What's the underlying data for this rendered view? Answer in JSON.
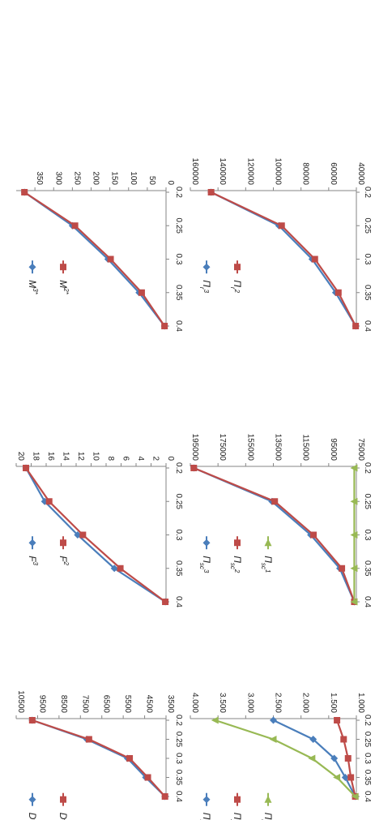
{
  "colors": {
    "blue": "#4a7ebb",
    "red": "#be4b48",
    "green": "#98b954",
    "axis": "#868686"
  },
  "chart_data": [
    {
      "type": "line",
      "x": [
        0.2,
        0.25,
        0.3,
        0.35,
        0.4
      ],
      "x_ticks": [
        "0.2",
        "0.25",
        "0.3",
        "0.35",
        "0.4"
      ],
      "xlim": [
        0.2,
        0.4
      ],
      "ylim": [
        0,
        400
      ],
      "y_ticks": [
        "0",
        "50",
        "100",
        "150",
        "200",
        "250",
        "300",
        "350"
      ],
      "y_tick_values": [
        0,
        50,
        100,
        150,
        200,
        250,
        300,
        350
      ],
      "series": [
        {
          "name": "M³*",
          "color": "blue",
          "marker": "diamond",
          "values": [
            378,
            250,
            155,
            72,
            4
          ]
        },
        {
          "name": "M²*",
          "color": "red",
          "marker": "square",
          "values": [
            378,
            243,
            148,
            65,
            4
          ]
        }
      ]
    },
    {
      "type": "line",
      "x": [
        0.2,
        0.25,
        0.3,
        0.35,
        0.4
      ],
      "x_ticks": [
        "0.2",
        "0.25",
        "0.3",
        "0.35",
        "0.4"
      ],
      "xlim": [
        0.2,
        0.4
      ],
      "ylim": [
        0,
        20
      ],
      "y_ticks": [
        "0",
        "2",
        "4",
        "6",
        "8",
        "10",
        "12",
        "14",
        "16",
        "18",
        "20"
      ],
      "y_tick_values": [
        0,
        2,
        4,
        6,
        8,
        10,
        12,
        14,
        16,
        18,
        20
      ],
      "series": [
        {
          "name": "F³",
          "color": "blue",
          "marker": "diamond",
          "values": [
            18.7,
            16.2,
            11.8,
            6.9,
            0.1
          ]
        },
        {
          "name": "F²",
          "color": "red",
          "marker": "square",
          "values": [
            18.7,
            15.6,
            11.1,
            6.1,
            0.1
          ]
        }
      ]
    },
    {
      "type": "line",
      "x": [
        0.2,
        0.25,
        0.3,
        0.35,
        0.4
      ],
      "x_ticks": [
        "0.2",
        "0.25",
        "0.3",
        "0.35",
        "0.4"
      ],
      "xlim": [
        0.2,
        0.4
      ],
      "ylim": [
        3500,
        10500
      ],
      "y_ticks": [
        "3500",
        "4500",
        "5500",
        "6500",
        "7500",
        "8500",
        "9500",
        "10500"
      ],
      "y_tick_values": [
        3500,
        4500,
        5500,
        6500,
        7500,
        8500,
        9500,
        10500
      ],
      "series": [
        {
          "name": "D³",
          "color": "blue",
          "marker": "diamond",
          "values": [
            9750,
            7200,
            5300,
            4450,
            3550
          ]
        },
        {
          "name": "D²",
          "color": "red",
          "marker": "square",
          "values": [
            9750,
            7100,
            5200,
            4350,
            3550
          ]
        }
      ]
    },
    {
      "type": "line",
      "x": [
        0.2,
        0.25,
        0.3,
        0.35,
        0.4
      ],
      "x_ticks": [
        "0.2",
        "0.25",
        "0.3",
        "0.35",
        "0.4"
      ],
      "xlim": [
        0.2,
        0.4
      ],
      "ylim": [
        40000,
        160000
      ],
      "y_ticks": [
        "40000",
        "60000",
        "80000",
        "100000",
        "120000",
        "140000",
        "160000"
      ],
      "y_tick_values": [
        40000,
        60000,
        80000,
        100000,
        120000,
        140000,
        160000
      ],
      "series": [
        {
          "name": "Π_r³",
          "color": "blue",
          "marker": "diamond",
          "values": [
            145000,
            96000,
            72000,
            55000,
            40500
          ]
        },
        {
          "name": "Π_r²",
          "color": "red",
          "marker": "square",
          "values": [
            145000,
            94000,
            70000,
            53000,
            40500
          ]
        }
      ]
    },
    {
      "type": "line",
      "x": [
        0.2,
        0.25,
        0.3,
        0.35,
        0.4
      ],
      "x_ticks": [
        "0.2",
        "0.25",
        "0.3",
        "0.35",
        "0.4"
      ],
      "xlim": [
        0.2,
        0.4
      ],
      "ylim": [
        75000,
        195000
      ],
      "y_ticks": [
        "75000",
        "95000",
        "115000",
        "135000",
        "155000",
        "175000",
        "195000"
      ],
      "y_tick_values": [
        75000,
        95000,
        115000,
        135000,
        155000,
        175000,
        195000
      ],
      "series": [
        {
          "name": "Π_sc³",
          "color": "blue",
          "marker": "diamond",
          "values": [
            192500,
            136000,
            108000,
            87000,
            76500
          ]
        },
        {
          "name": "Π_sc²",
          "color": "red",
          "marker": "square",
          "values": [
            192500,
            134000,
            106000,
            85500,
            76500
          ]
        },
        {
          "name": "Π_sc¹",
          "color": "green",
          "marker": "triangle",
          "values": [
            76500,
            76500,
            76500,
            76500,
            76500
          ]
        }
      ]
    },
    {
      "type": "line",
      "x": [
        0.2,
        0.25,
        0.3,
        0.35,
        0.4
      ],
      "x_ticks": [
        "0.2",
        "0.25",
        "0.3",
        "0.35",
        "0.4"
      ],
      "xlim": [
        0.2,
        0.4
      ],
      "ylim": [
        1.0,
        4.0
      ],
      "y_ticks": [
        "1.000",
        "1.500",
        "2.000",
        "2.500",
        "3.000",
        "3.500",
        "4.000"
      ],
      "y_tick_values": [
        1.0,
        1.5,
        2.0,
        2.5,
        3.0,
        3.5,
        4.0
      ],
      "series": [
        {
          "name": "Π_sc³/Π_sc⁰",
          "color": "blue",
          "marker": "diamond",
          "values": [
            2.5,
            1.78,
            1.4,
            1.2,
            1.02
          ]
        },
        {
          "name": "Π_z³/Π_z⁰",
          "color": "red",
          "marker": "square",
          "values": [
            1.35,
            1.23,
            1.15,
            1.1,
            1.02
          ]
        },
        {
          "name": "Π_r³/Π_r⁰",
          "color": "green",
          "marker": "triangle",
          "values": [
            3.55,
            2.5,
            1.8,
            1.35,
            1.02
          ]
        }
      ]
    }
  ]
}
